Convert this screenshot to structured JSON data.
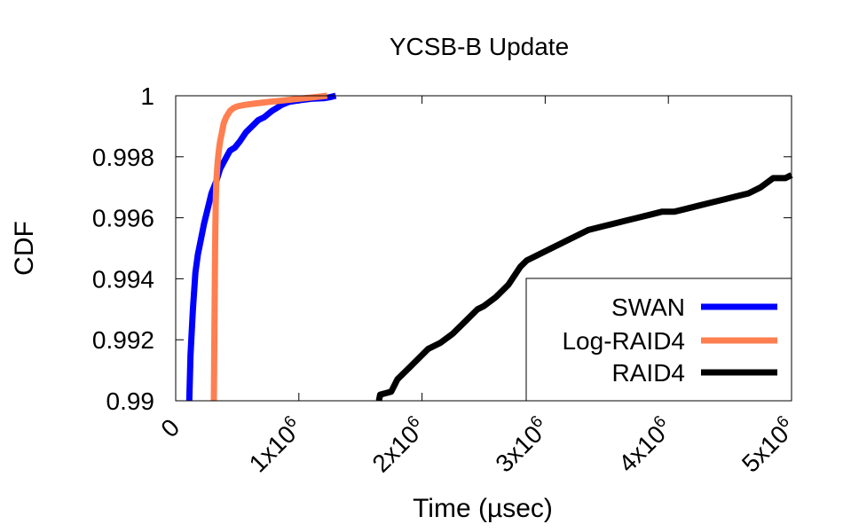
{
  "chart_data": {
    "type": "line",
    "title": "YCSB-B Update",
    "xlabel": "Time (µsec)",
    "ylabel": "CDF",
    "xlim": [
      0,
      5000000
    ],
    "ylim": [
      0.99,
      1.0
    ],
    "y_ticks": [
      {
        "value": 0.99,
        "label": "0.99"
      },
      {
        "value": 0.992,
        "label": "0.992"
      },
      {
        "value": 0.994,
        "label": "0.994"
      },
      {
        "value": 0.996,
        "label": "0.996"
      },
      {
        "value": 0.998,
        "label": "0.998"
      },
      {
        "value": 1.0,
        "label": "1"
      }
    ],
    "x_ticks": [
      {
        "value": 0,
        "base": "0",
        "exp": ""
      },
      {
        "value": 1000000,
        "base": "1x10",
        "exp": "6"
      },
      {
        "value": 2000000,
        "base": "2x10",
        "exp": "6"
      },
      {
        "value": 3000000,
        "base": "3x10",
        "exp": "6"
      },
      {
        "value": 4000000,
        "base": "4x10",
        "exp": "6"
      },
      {
        "value": 5000000,
        "base": "5x10",
        "exp": "6"
      }
    ],
    "legend_position": "bottom-right",
    "grid": false,
    "series": [
      {
        "name": "SWAN",
        "color": "#0000ff",
        "x": [
          110000,
          120000,
          140000,
          160000,
          180000,
          200000,
          230000,
          260000,
          290000,
          330000,
          360000,
          400000,
          440000,
          480000,
          520000,
          570000,
          620000,
          670000,
          720000,
          780000,
          820000,
          860000,
          920000,
          1000000,
          1100000,
          1200000,
          1250000,
          1300000
        ],
        "y": [
          0.99,
          0.9915,
          0.993,
          0.9942,
          0.9948,
          0.9952,
          0.9958,
          0.9963,
          0.9968,
          0.9972,
          0.9976,
          0.9979,
          0.9982,
          0.9983,
          0.9985,
          0.9988,
          0.999,
          0.9992,
          0.9993,
          0.9995,
          0.9996,
          0.9997,
          0.9998,
          0.99985,
          0.9999,
          0.99992,
          0.99995,
          1.0
        ]
      },
      {
        "name": "Log-RAID4",
        "color": "#ff7f50",
        "x": [
          310000,
          315000,
          320000,
          325000,
          330000,
          340000,
          350000,
          360000,
          375000,
          390000,
          410000,
          440000,
          470000,
          500000,
          560000,
          650000,
          760000,
          880000,
          1000000,
          1120000,
          1230000
        ],
        "y": [
          0.99,
          0.9925,
          0.995,
          0.9965,
          0.9972,
          0.9978,
          0.9982,
          0.9985,
          0.9988,
          0.9991,
          0.9993,
          0.9995,
          0.9996,
          0.99965,
          0.9997,
          0.99975,
          0.9998,
          0.99985,
          0.9999,
          0.99995,
          1.0
        ]
      },
      {
        "name": "RAID4",
        "color": "#000000",
        "x": [
          1650000,
          1660000,
          1750000,
          1800000,
          1900000,
          2000000,
          2050000,
          2150000,
          2250000,
          2350000,
          2450000,
          2500000,
          2600000,
          2700000,
          2800000,
          2850000,
          2950000,
          3050000,
          3150000,
          3250000,
          3350000,
          3450000,
          3550000,
          3650000,
          3750000,
          3850000,
          3950000,
          4050000,
          4150000,
          4250000,
          4350000,
          4450000,
          4550000,
          4650000,
          4750000,
          4850000,
          4950000,
          5000000
        ],
        "y": [
          0.99,
          0.9902,
          0.9903,
          0.9907,
          0.9911,
          0.9915,
          0.9917,
          0.9919,
          0.9922,
          0.9926,
          0.993,
          0.9931,
          0.9934,
          0.9938,
          0.9944,
          0.9946,
          0.9948,
          0.995,
          0.9952,
          0.9954,
          0.9956,
          0.9957,
          0.9958,
          0.9959,
          0.996,
          0.9961,
          0.9962,
          0.9962,
          0.9963,
          0.9964,
          0.9965,
          0.9966,
          0.9967,
          0.9968,
          0.997,
          0.9973,
          0.9973,
          0.9974
        ]
      }
    ]
  }
}
